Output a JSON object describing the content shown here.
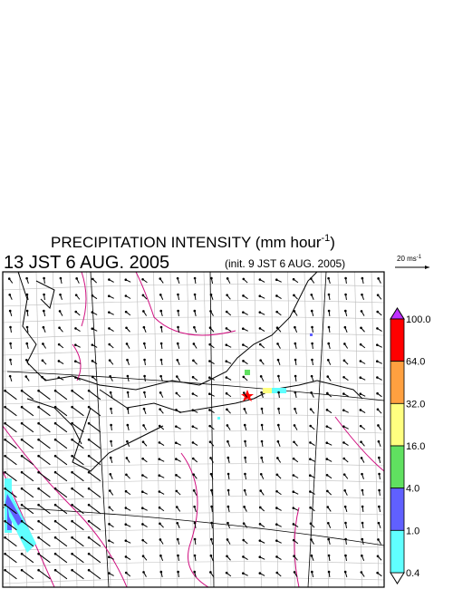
{
  "header": {
    "title": "PRECIPITATION INTENSITY (mm hour",
    "title_exponent": "-1",
    "title_close": ")",
    "valid_time": "13 JST 6 AUG. 2005",
    "init_time": "(init. 9 JST 6 AUG. 2005)"
  },
  "reference_vector": {
    "label": "20 ms",
    "exponent": "-1"
  },
  "colorbar": {
    "levels": [
      "100.0",
      "64.0",
      "32.0",
      "16.0",
      "4.0",
      "1.0",
      "0.4"
    ],
    "colors": [
      "#ff0000",
      "#ffa040",
      "#ffff80",
      "#60e060",
      "#6060ff",
      "#60ffff"
    ],
    "over_color": "#c030ff",
    "under_color": "#ffffff"
  }
}
